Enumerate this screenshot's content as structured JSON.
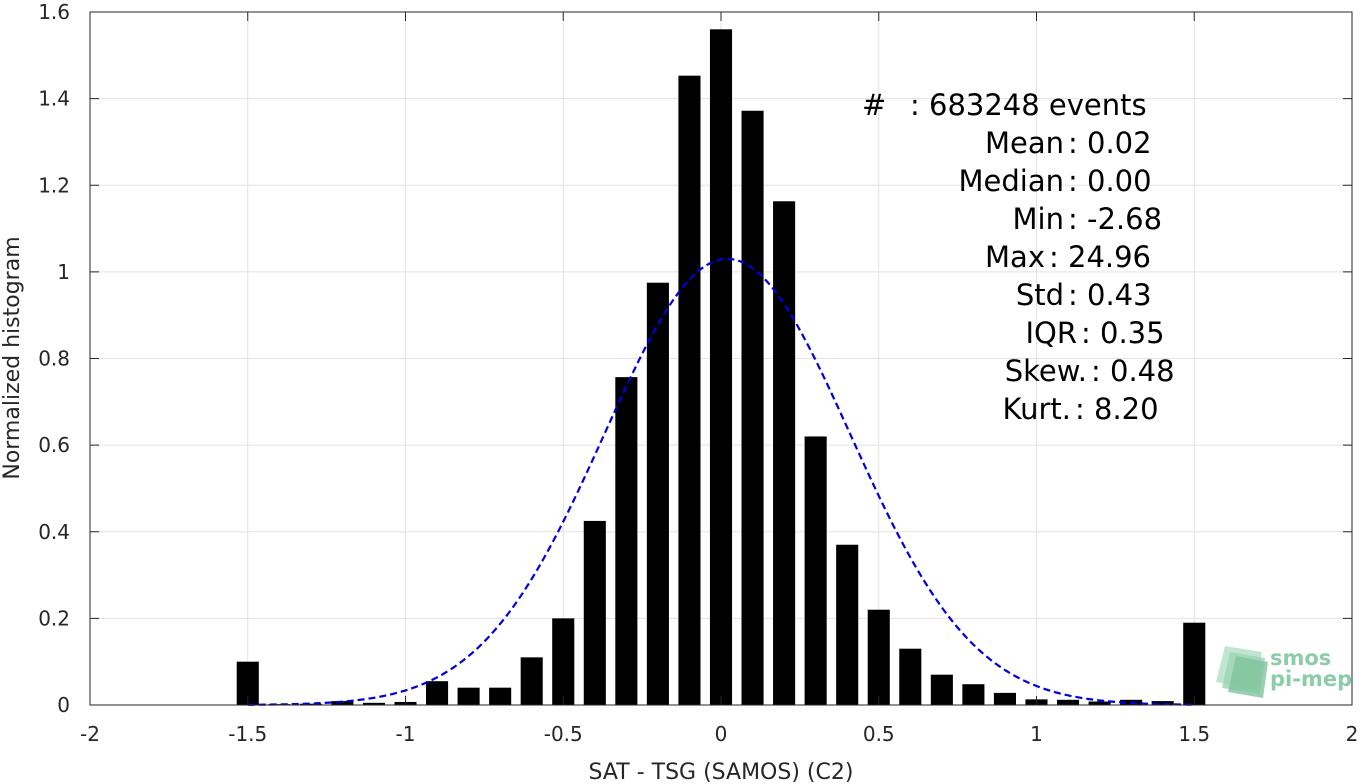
{
  "chart_data": {
    "type": "bar",
    "xlabel": "SAT - TSG (SAMOS) (C2)",
    "ylabel": "Normalized histogram",
    "xlim": [
      -2,
      2
    ],
    "ylim": [
      0,
      1.6
    ],
    "grid": true,
    "x_ticks": [
      -2,
      -1.5,
      -1,
      -0.5,
      0,
      0.5,
      1,
      1.5,
      2
    ],
    "x_tick_labels": [
      "-2",
      "-1.5",
      "-1",
      "-0.5",
      "0",
      "0.5",
      "1",
      "1.5",
      "2"
    ],
    "y_ticks": [
      0,
      0.2,
      0.4,
      0.6,
      0.8,
      1.0,
      1.2,
      1.4,
      1.6
    ],
    "y_tick_labels": [
      "0",
      "0.2",
      "0.4",
      "0.6",
      "0.8",
      "1",
      "1.2",
      "1.4",
      "1.6"
    ],
    "bar_color": "#000000",
    "x": [
      -1.5,
      -1.4,
      -1.3,
      -1.2,
      -1.1,
      -1.0,
      -0.9,
      -0.8,
      -0.7,
      -0.6,
      -0.5,
      -0.4,
      -0.3,
      -0.2,
      -0.1,
      0.0,
      0.1,
      0.2,
      0.3,
      0.4,
      0.5,
      0.6,
      0.7,
      0.8,
      0.9,
      1.0,
      1.1,
      1.2,
      1.3,
      1.4,
      1.5
    ],
    "values": [
      0.1,
      0.002,
      0.003,
      0.009,
      0.005,
      0.007,
      0.055,
      0.04,
      0.04,
      0.11,
      0.2,
      0.425,
      0.757,
      0.975,
      1.453,
      1.56,
      1.372,
      1.163,
      0.62,
      0.37,
      0.22,
      0.13,
      0.07,
      0.048,
      0.028,
      0.013,
      0.012,
      0.008,
      0.012,
      0.009,
      0.19
    ],
    "fit_curve": {
      "style": "dashed",
      "color": "#0000dd",
      "mean": 0.02,
      "std": 0.39,
      "peak": 1.03,
      "x_range": [
        -1.5,
        1.5
      ]
    },
    "annotations": [
      {
        "label": "#",
        "value": ": 683248 events"
      },
      {
        "label": "Mean",
        "value": ": 0.02"
      },
      {
        "label": "Median",
        "value": ": 0.00"
      },
      {
        "label": "Min",
        "value": ": -2.68"
      },
      {
        "label": "Max",
        "value": ": 24.96"
      },
      {
        "label": "Std",
        "value": ": 0.43"
      },
      {
        "label": "IQR",
        "value": ": 0.35"
      },
      {
        "label": "Skew.",
        "value": ": 0.48"
      },
      {
        "label": "Kurt.",
        "value": ": 8.20"
      }
    ]
  },
  "logo": {
    "line1": "smos",
    "line2": "pi-mep",
    "color": "#8ccca8"
  }
}
